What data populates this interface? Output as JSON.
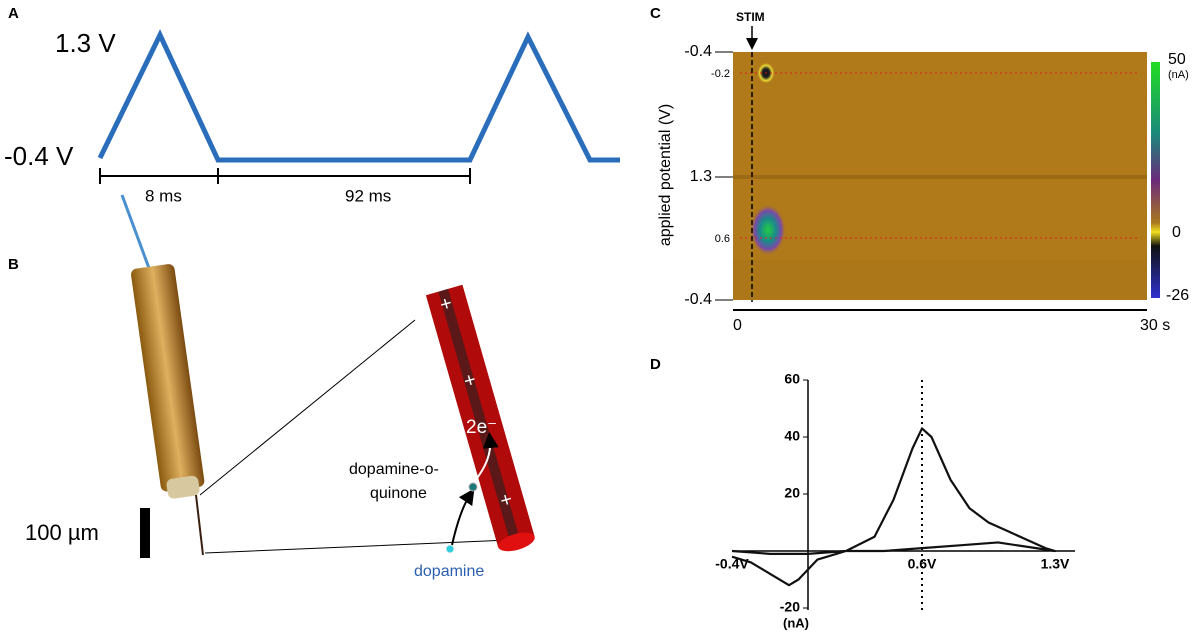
{
  "panels": {
    "a": {
      "label": "A",
      "high": "1.3 V",
      "low": "-0.4 V",
      "period1": "8 ms",
      "period2": "92 ms"
    },
    "b": {
      "label": "B",
      "scale": "100 µm",
      "electrons": "2e⁻",
      "product": [
        "dopamine-o-",
        "quinone"
      ],
      "reactant": "dopamine"
    },
    "c": {
      "label": "C",
      "stim": "STIM",
      "ylabel": "applied potential (V)",
      "yticks": [
        "-0.4",
        "1.3",
        "-0.4"
      ],
      "inner_ticks": [
        "-0.2",
        "0.6"
      ],
      "xticks": [
        "0",
        "30 s"
      ],
      "colorbar": [
        "50",
        "(nA)",
        "0",
        "-26"
      ]
    },
    "d": {
      "label": "D"
    }
  },
  "chart_data": {
    "type": "line",
    "color": "#111111",
    "xlim": [
      -0.4,
      1.3
    ],
    "ylim": [
      -20,
      60
    ],
    "yticks": [
      -20,
      20,
      40,
      60
    ],
    "yunit": "(nA)",
    "xticks": [
      {
        "value": -0.4,
        "label": "-0.4V"
      },
      {
        "value": 0.6,
        "label": "0.6V"
      },
      {
        "value": 1.3,
        "label": "1.3V"
      }
    ],
    "marker_x": 0.6,
    "x": [
      -0.4,
      -0.2,
      0,
      0.2,
      0.35,
      0.45,
      0.55,
      0.6,
      0.65,
      0.75,
      0.85,
      0.95,
      1.05,
      1.15,
      1.25,
      1.3,
      1.2,
      1.0,
      0.8,
      0.6,
      0.4,
      0.2,
      0.05,
      -0.05,
      -0.1,
      -0.2,
      -0.3,
      -0.4
    ],
    "values": [
      0,
      -1,
      -1,
      0,
      5,
      18,
      36,
      43,
      40,
      25,
      15,
      10,
      7,
      4,
      1,
      0,
      1,
      3,
      2,
      1,
      0,
      0,
      -3,
      -10,
      -12,
      -8,
      -4,
      -2
    ]
  }
}
